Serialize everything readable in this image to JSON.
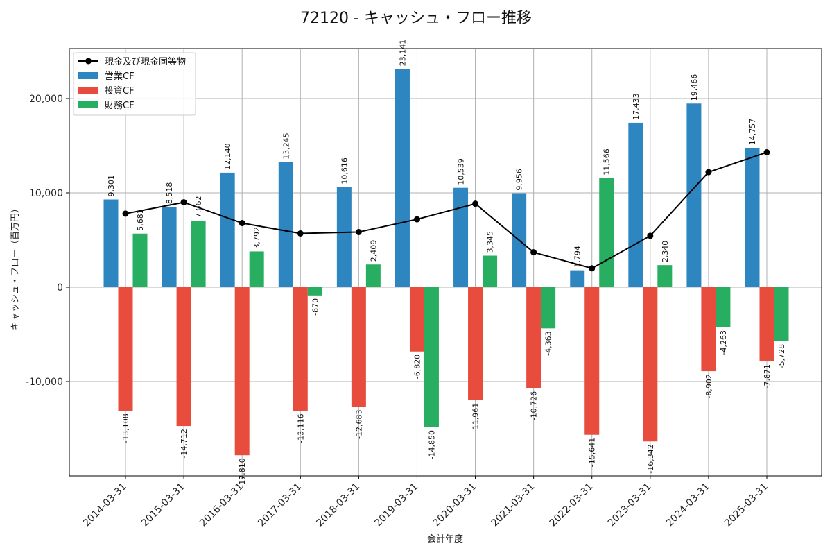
{
  "chart_data": {
    "type": "bar",
    "title": "72120 - キャッシュ・フロー推移",
    "xlabel": "会計年度",
    "ylabel": "キャッシュ・フロー（百万円）",
    "ylim": [
      -20000,
      25000
    ],
    "yticks": [
      -10000,
      0,
      10000,
      20000
    ],
    "ytick_labels": [
      "-10,000",
      "0",
      "10,000",
      "20,000"
    ],
    "grid": true,
    "legend_position": "top-left",
    "categories": [
      "2014-03-31",
      "2015-03-31",
      "2016-03-31",
      "2017-03-31",
      "2018-03-31",
      "2019-03-31",
      "2020-03-31",
      "2021-03-31",
      "2022-03-31",
      "2023-03-31",
      "2024-03-31",
      "2025-03-31"
    ],
    "series": [
      {
        "name": "営業CF",
        "type": "bar",
        "color": "#2e86c1",
        "values": [
          9301,
          8518,
          12140,
          13245,
          10616,
          23141,
          10539,
          9956,
          1794,
          17433,
          19466,
          14757
        ],
        "labels": [
          "9,301",
          "8,518",
          "12,140",
          "13,245",
          "10,616",
          "23,141",
          "10,539",
          "9,956",
          "1,794",
          "17,433",
          "19,466",
          "14,757"
        ]
      },
      {
        "name": "投資CF",
        "type": "bar",
        "color": "#e74c3c",
        "values": [
          -13108,
          -14712,
          -17810,
          -13116,
          -12683,
          -6820,
          -11961,
          -10726,
          -15641,
          -16342,
          -8902,
          -7871
        ],
        "labels": [
          "-13,108",
          "-14,712",
          "-17,810",
          "-13,116",
          "-12,683",
          "-6,820",
          "-11,961",
          "-10,726",
          "-15,641",
          "-16,342",
          "-8,902",
          "-7,871"
        ]
      },
      {
        "name": "財務CF",
        "type": "bar",
        "color": "#27ae60",
        "values": [
          5681,
          7062,
          3792,
          -870,
          2409,
          -14850,
          3345,
          -4363,
          11566,
          2340,
          -4263,
          -5728
        ],
        "labels": [
          "5,681",
          "7,062",
          "3,792",
          "-870",
          "2,409",
          "-14,850",
          "3,345",
          "-4,363",
          "11,566",
          "2,340",
          "-4,263",
          "-5,728"
        ]
      },
      {
        "name": "現金及び現金同等物",
        "type": "line",
        "color": "#000000",
        "values": [
          7800,
          9000,
          6800,
          5700,
          5850,
          7200,
          8850,
          3700,
          2000,
          5450,
          12200,
          14300
        ]
      }
    ]
  }
}
